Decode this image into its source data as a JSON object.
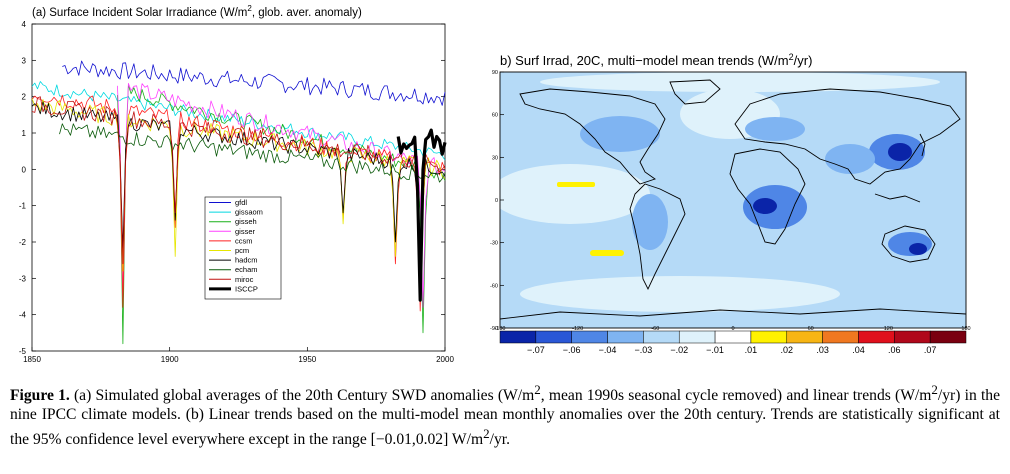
{
  "panel_a": {
    "title_prefix": "(a) Surface Incident Solar Irradiance (W/m",
    "title_sup": "2",
    "title_suffix": ", glob. aver. anomaly)"
  },
  "panel_b": {
    "title_prefix": "b) Surf Irrad, 20C, multi−model mean trends (W/m",
    "title_sup": "2",
    "title_suffix": "/yr)",
    "lat_ticks": [
      "90",
      "60",
      "30",
      "0",
      "-30",
      "-60",
      "-90"
    ],
    "lon_ticks": [
      "-180",
      "-120",
      "-60",
      "0",
      "60",
      "120",
      "180"
    ],
    "colorbar_labels": [
      "−.07",
      "−.06",
      "−.04",
      "−.03",
      "−.02",
      "−.01",
      ".01",
      ".02",
      ".03",
      ".04",
      ".06",
      ".07"
    ],
    "colorbar_colors": [
      "#0a24a8",
      "#2a57d6",
      "#4f86e6",
      "#7fb4f2",
      "#b5daf7",
      "#dff2fb",
      "#ffffff",
      "#fff200",
      "#f7b514",
      "#f07820",
      "#e0101c",
      "#b0081a",
      "#7a0010"
    ]
  },
  "chart_data": {
    "type": "line",
    "title": "(a) Surface Incident Solar Irradiance (W/m2, glob. aver. anomaly)",
    "xlabel": "",
    "ylabel": "",
    "xlim": [
      1850,
      2000
    ],
    "ylim": [
      -5,
      4
    ],
    "x_ticks": [
      "1850",
      "1900",
      "1950",
      "2000"
    ],
    "y_ticks": [
      "4",
      "3",
      "2",
      "1",
      "0",
      "-1",
      "-2",
      "-3",
      "-4",
      "-5"
    ],
    "legend_position": "lower-center",
    "series": [
      {
        "name": "gfdl",
        "color": "#1010d0",
        "start": 1861,
        "base": 2.9,
        "trend": -0.9,
        "noise": 0.25,
        "dips": []
      },
      {
        "name": "gissaom",
        "color": "#00d8e0",
        "start": 1850,
        "base": 2.3,
        "trend": -1.9,
        "noise": 0.18,
        "dips": []
      },
      {
        "name": "gisseh",
        "color": "#18b018",
        "start": 1881,
        "base": 2.8,
        "trend": -2.9,
        "noise": 0.22,
        "dips": [
          [
            1883,
            -4.8
          ],
          [
            1992,
            -4.5
          ]
        ]
      },
      {
        "name": "gisser",
        "color": "#ff40ff",
        "start": 1881,
        "base": 2.9,
        "trend": -2.9,
        "noise": 0.25,
        "dips": [
          [
            1883,
            -3.6
          ],
          [
            1992,
            -3.8
          ]
        ]
      },
      {
        "name": "ccsm",
        "color": "#ff2020",
        "start": 1850,
        "base": 2.1,
        "trend": -2.1,
        "noise": 0.25,
        "dips": [
          [
            1883,
            -3.8
          ],
          [
            1902,
            -1.6
          ],
          [
            1963,
            -1.4
          ],
          [
            1982,
            -2.6
          ],
          [
            1991,
            -3.9
          ]
        ]
      },
      {
        "name": "pcm",
        "color": "#e6e600",
        "start": 1850,
        "base": 1.8,
        "trend": -1.8,
        "noise": 0.25,
        "dips": [
          [
            1883,
            -2.8
          ],
          [
            1902,
            -2.4
          ],
          [
            1963,
            -1.5
          ],
          [
            1982,
            -2.4
          ],
          [
            1991,
            -3.6
          ]
        ]
      },
      {
        "name": "hadcm",
        "color": "#000000",
        "start": 1850,
        "base": 1.7,
        "trend": -1.7,
        "noise": 0.22,
        "dips": [
          [
            1883,
            -2.2
          ],
          [
            1902,
            -1.4
          ],
          [
            1963,
            -1.2
          ],
          [
            1982,
            -2.0
          ],
          [
            1991,
            -3.0
          ]
        ]
      },
      {
        "name": "echam",
        "color": "#0a5a0a",
        "start": 1860,
        "base": 1.2,
        "trend": -1.4,
        "noise": 0.22,
        "dips": []
      },
      {
        "name": "miroc",
        "color": "#c01010",
        "start": 1850,
        "base": 1.8,
        "trend": -1.7,
        "noise": 0.25,
        "dips": [
          [
            1883,
            -2.6
          ],
          [
            1902,
            -1.2
          ],
          [
            1991,
            -3.0
          ]
        ]
      },
      {
        "name": "ISCCP",
        "color": "#000000",
        "start": 1983,
        "base": 1.0,
        "trend": -0.2,
        "noise": 0.5,
        "dips": [
          [
            1991,
            -3.6
          ]
        ],
        "thick": true
      }
    ]
  },
  "caption": {
    "label": "Figure 1.",
    "t1": "  (a) Simulated global averages of the 20th Century SWD anomalies (W/m",
    "t2": ", mean 1990s seasonal cycle removed) and linear trends (W/m",
    "t3": "/yr) in the nine IPCC climate models. (b) Linear trends based on the multi-model mean monthly anomalies over the 20th century. Trends are statistically significant at the 95% confidence level everywhere except in the range [−0.01,0.02] W/m",
    "t4": "/yr.",
    "sup": "2"
  }
}
